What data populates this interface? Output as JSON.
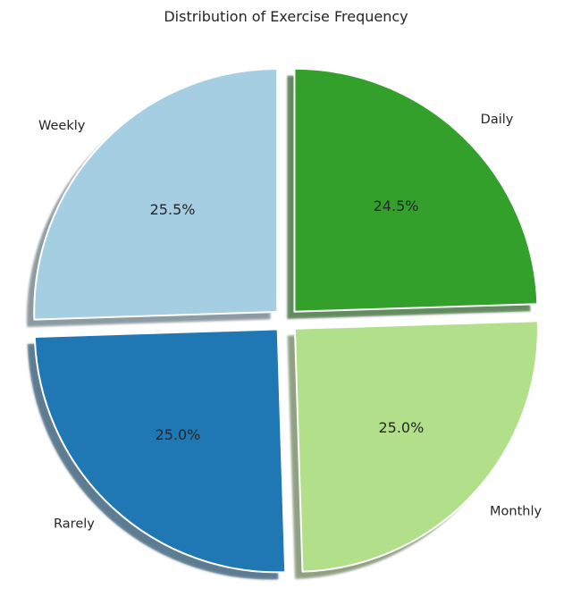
{
  "chart_data": {
    "type": "pie",
    "title": "Distribution of Exercise Frequency",
    "start_angle_deg": 90,
    "direction": "clockwise",
    "explode": 0.05,
    "shadow": true,
    "slices": [
      {
        "label": "Daily",
        "value": 24.5,
        "pct_label": "24.5%",
        "color": "#33a02c"
      },
      {
        "label": "Monthly",
        "value": 25.0,
        "pct_label": "25.0%",
        "color": "#b2df8a"
      },
      {
        "label": "Rarely",
        "value": 25.0,
        "pct_label": "25.0%",
        "color": "#1f78b4"
      },
      {
        "label": "Weekly",
        "value": 25.5,
        "pct_label": "25.5%",
        "color": "#a6cee3"
      }
    ]
  }
}
